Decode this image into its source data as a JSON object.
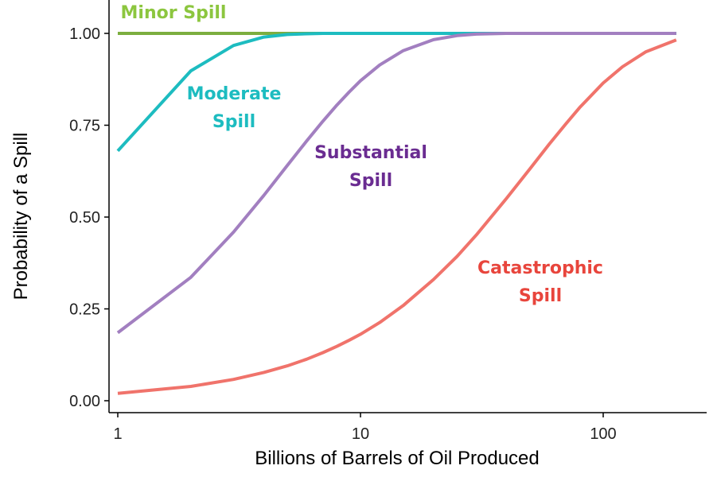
{
  "chart_data": {
    "type": "line",
    "xlabel": "Billions of Barrels of Oil Produced",
    "ylabel": "Probability of a Spill",
    "x_scale": "log",
    "xlim": [
      1,
      200
    ],
    "ylim": [
      0,
      1
    ],
    "grid": false,
    "legend": "none (direct labels)",
    "x_ticks": [
      1,
      10,
      100
    ],
    "x_tick_labels": [
      "1",
      "10",
      "100"
    ],
    "y_ticks": [
      0,
      0.25,
      0.5,
      0.75,
      1
    ],
    "y_tick_labels": [
      "0.00",
      "0.25",
      "0.50",
      "0.75",
      "1.00"
    ],
    "x": [
      1,
      2,
      3,
      4,
      5,
      6,
      7,
      8,
      9,
      10,
      12,
      15,
      20,
      25,
      30,
      40,
      50,
      60,
      70,
      80,
      100,
      120,
      150,
      200
    ],
    "series": [
      {
        "name": "Minor Spill",
        "label_lines": [
          "Minor Spill"
        ],
        "color": "#7cae3f",
        "label_color": "#8cc63f",
        "values": [
          1,
          1,
          1,
          1,
          1,
          1,
          1,
          1,
          1,
          1,
          1,
          1,
          1,
          1,
          1,
          1,
          1,
          1,
          1,
          1,
          1,
          1,
          1,
          1
        ]
      },
      {
        "name": "Moderate Spill",
        "label_lines": [
          "Moderate",
          "Spill"
        ],
        "color": "#1dbcc0",
        "label_color": "#1dbcc0",
        "values": [
          0.68,
          0.898,
          0.967,
          0.99,
          0.997,
          0.999,
          1,
          1,
          1,
          1,
          1,
          1,
          1,
          1,
          1,
          1,
          1,
          1,
          1,
          1,
          1,
          1,
          1,
          1
        ]
      },
      {
        "name": "Substantial Spill",
        "label_lines": [
          "Substantial",
          "Spill"
        ],
        "color": "#a27fc0",
        "label_color": "#6a2c91",
        "values": [
          0.185,
          0.336,
          0.459,
          0.559,
          0.641,
          0.707,
          0.761,
          0.805,
          0.841,
          0.871,
          0.914,
          0.953,
          0.983,
          0.994,
          0.998,
          1,
          1,
          1,
          1,
          1,
          1,
          1,
          1,
          1
        ]
      },
      {
        "name": "Catastrophic Spill",
        "label_lines": [
          "Catastrophic",
          "Spill"
        ],
        "color": "#f0736b",
        "label_color": "#e8453c",
        "values": [
          0.02,
          0.039,
          0.058,
          0.077,
          0.095,
          0.113,
          0.131,
          0.148,
          0.165,
          0.181,
          0.213,
          0.259,
          0.33,
          0.393,
          0.451,
          0.551,
          0.632,
          0.699,
          0.753,
          0.798,
          0.865,
          0.909,
          0.95,
          0.982
        ]
      }
    ]
  }
}
